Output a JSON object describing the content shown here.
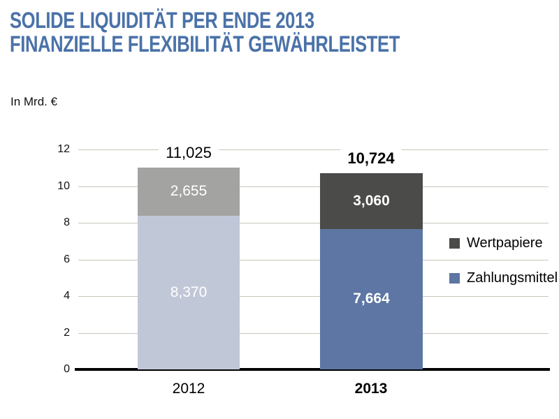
{
  "header": {
    "title_line1": "SOLIDE LIQUIDITÄT PER ENDE 2013",
    "title_line2": "FINANZIELLE FLEXIBILITÄT GEWÄHRLEISTET"
  },
  "chart_data": {
    "type": "bar",
    "stacked": true,
    "title": "SOLIDE LIQUIDITÄT PER ENDE 2013 FINANZIELLE FLEXIBILITÄT GEWÄHRLEISTET",
    "unit_label": "In Mrd. €",
    "categories": [
      "2012",
      "2013"
    ],
    "category_emphasis": [
      false,
      true
    ],
    "series": [
      {
        "name": "Zahlungsmittel",
        "values": [
          8.37,
          7.664
        ],
        "value_labels": [
          "8,370",
          "7,664"
        ],
        "colors": [
          "#c0c8d8",
          "#5d76a3"
        ]
      },
      {
        "name": "Wertpapiere",
        "values": [
          2.655,
          3.06
        ],
        "value_labels": [
          "2,655",
          "3,060"
        ],
        "colors": [
          "#a3a3a1",
          "#4b4b49"
        ]
      }
    ],
    "totals": [
      11.025,
      10.724
    ],
    "total_labels": [
      "11,025",
      "10,724"
    ],
    "ylim": [
      0,
      12
    ],
    "yticks": [
      0,
      2,
      4,
      6,
      8,
      10,
      12
    ],
    "grid": true,
    "legend": {
      "position": "right",
      "items": [
        {
          "label": "Wertpapiere",
          "color": "#4b4b49"
        },
        {
          "label": "Zahlungsmittel",
          "color": "#5d76a3"
        }
      ]
    },
    "colors": {
      "title": "#4a72a8",
      "grid": "#cac6b9",
      "axis": "#000000",
      "value_text": "#ffffff"
    }
  }
}
